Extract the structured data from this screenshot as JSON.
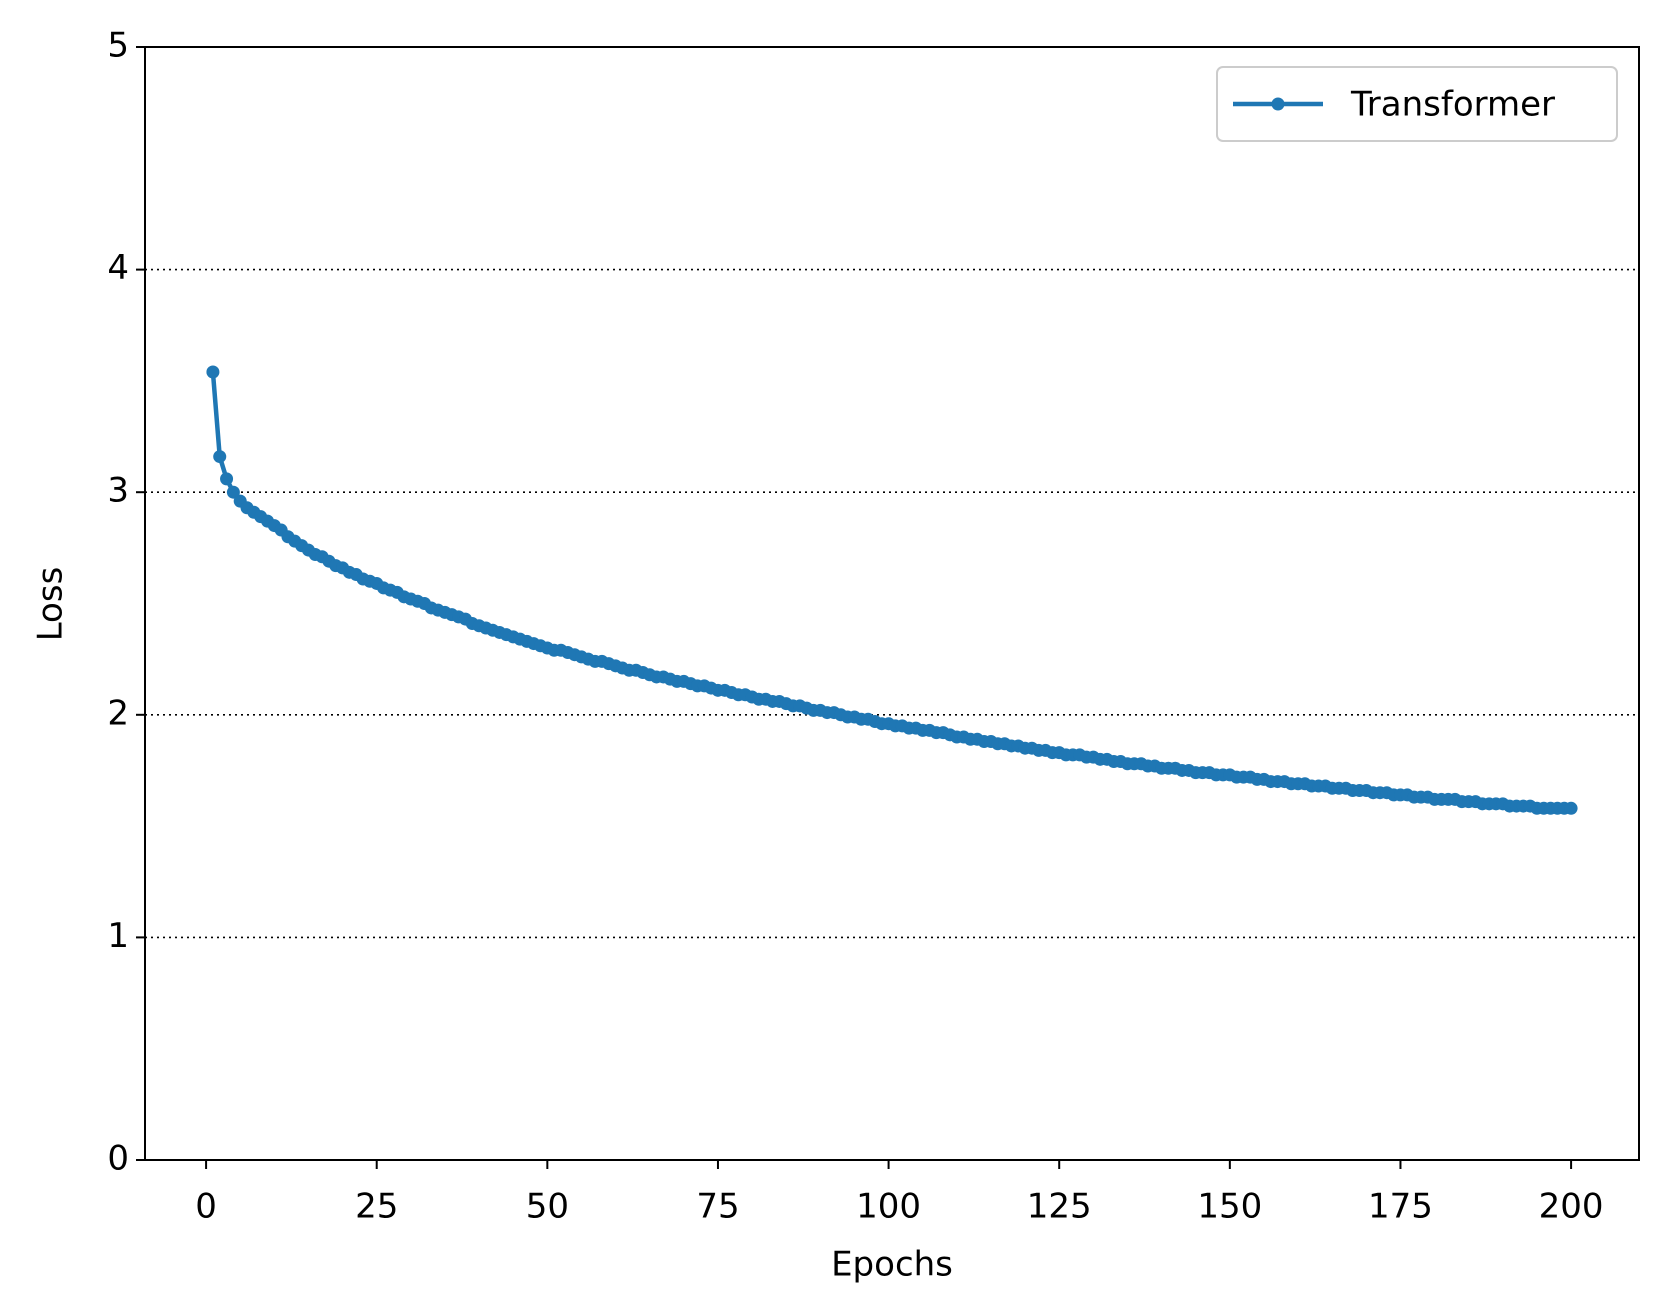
{
  "chart_data": {
    "type": "line",
    "xlabel": "Epochs",
    "ylabel": "Loss",
    "x": [
      1,
      2,
      3,
      4,
      5,
      6,
      7,
      8,
      9,
      10,
      11,
      12,
      13,
      14,
      15,
      16,
      17,
      18,
      19,
      20,
      21,
      22,
      23,
      24,
      25,
      26,
      27,
      28,
      29,
      30,
      31,
      32,
      33,
      34,
      35,
      36,
      37,
      38,
      39,
      40,
      41,
      42,
      43,
      44,
      45,
      46,
      47,
      48,
      49,
      50,
      51,
      52,
      53,
      54,
      55,
      56,
      57,
      58,
      59,
      60,
      61,
      62,
      63,
      64,
      65,
      66,
      67,
      68,
      69,
      70,
      71,
      72,
      73,
      74,
      75,
      76,
      77,
      78,
      79,
      80,
      81,
      82,
      83,
      84,
      85,
      86,
      87,
      88,
      89,
      90,
      91,
      92,
      93,
      94,
      95,
      96,
      97,
      98,
      99,
      100,
      101,
      102,
      103,
      104,
      105,
      106,
      107,
      108,
      109,
      110,
      111,
      112,
      113,
      114,
      115,
      116,
      117,
      118,
      119,
      120,
      121,
      122,
      123,
      124,
      125,
      126,
      127,
      128,
      129,
      130,
      131,
      132,
      133,
      134,
      135,
      136,
      137,
      138,
      139,
      140,
      141,
      142,
      143,
      144,
      145,
      146,
      147,
      148,
      149,
      150,
      151,
      152,
      153,
      154,
      155,
      156,
      157,
      158,
      159,
      160,
      161,
      162,
      163,
      164,
      165,
      166,
      167,
      168,
      169,
      170,
      171,
      172,
      173,
      174,
      175,
      176,
      177,
      178,
      179,
      180,
      181,
      182,
      183,
      184,
      185,
      186,
      187,
      188,
      189,
      190,
      191,
      192,
      193,
      194,
      195,
      196,
      197,
      198,
      199,
      200
    ],
    "series": [
      {
        "name": "Transformer",
        "color": "#1f77b4",
        "values": [
          3.54,
          3.16,
          3.06,
          3.0,
          2.96,
          2.93,
          2.91,
          2.89,
          2.87,
          2.85,
          2.83,
          2.8,
          2.78,
          2.76,
          2.74,
          2.72,
          2.71,
          2.69,
          2.67,
          2.66,
          2.64,
          2.63,
          2.61,
          2.6,
          2.59,
          2.57,
          2.56,
          2.55,
          2.53,
          2.52,
          2.51,
          2.5,
          2.48,
          2.47,
          2.46,
          2.45,
          2.44,
          2.43,
          2.41,
          2.4,
          2.39,
          2.38,
          2.37,
          2.36,
          2.35,
          2.34,
          2.33,
          2.32,
          2.31,
          2.3,
          2.29,
          2.29,
          2.28,
          2.27,
          2.26,
          2.25,
          2.24,
          2.24,
          2.23,
          2.22,
          2.21,
          2.2,
          2.2,
          2.19,
          2.18,
          2.17,
          2.17,
          2.16,
          2.15,
          2.15,
          2.14,
          2.13,
          2.13,
          2.12,
          2.11,
          2.11,
          2.1,
          2.09,
          2.09,
          2.08,
          2.07,
          2.07,
          2.06,
          2.06,
          2.05,
          2.04,
          2.04,
          2.03,
          2.02,
          2.02,
          2.01,
          2.01,
          2.0,
          1.99,
          1.99,
          1.98,
          1.98,
          1.97,
          1.96,
          1.96,
          1.95,
          1.95,
          1.94,
          1.94,
          1.93,
          1.93,
          1.92,
          1.92,
          1.91,
          1.9,
          1.9,
          1.89,
          1.89,
          1.88,
          1.88,
          1.87,
          1.87,
          1.86,
          1.86,
          1.85,
          1.85,
          1.84,
          1.84,
          1.83,
          1.83,
          1.82,
          1.82,
          1.82,
          1.81,
          1.81,
          1.8,
          1.8,
          1.79,
          1.79,
          1.78,
          1.78,
          1.78,
          1.77,
          1.77,
          1.76,
          1.76,
          1.76,
          1.75,
          1.75,
          1.74,
          1.74,
          1.74,
          1.73,
          1.73,
          1.73,
          1.72,
          1.72,
          1.72,
          1.71,
          1.71,
          1.7,
          1.7,
          1.7,
          1.69,
          1.69,
          1.69,
          1.68,
          1.68,
          1.68,
          1.67,
          1.67,
          1.67,
          1.66,
          1.66,
          1.66,
          1.65,
          1.65,
          1.65,
          1.64,
          1.64,
          1.64,
          1.63,
          1.63,
          1.63,
          1.62,
          1.62,
          1.62,
          1.62,
          1.61,
          1.61,
          1.61,
          1.6,
          1.6,
          1.6,
          1.6,
          1.59,
          1.59,
          1.59,
          1.59,
          1.58,
          1.58,
          1.58,
          1.58,
          1.58,
          1.58
        ]
      }
    ],
    "xlim": [
      -8.95,
      209.95
    ],
    "xticks": [
      0,
      25,
      50,
      75,
      100,
      125,
      150,
      175,
      200
    ],
    "ylim": [
      0,
      5
    ],
    "yticks": [
      0,
      1,
      2,
      3,
      4,
      5
    ],
    "grid": true,
    "legend": "upper right"
  }
}
